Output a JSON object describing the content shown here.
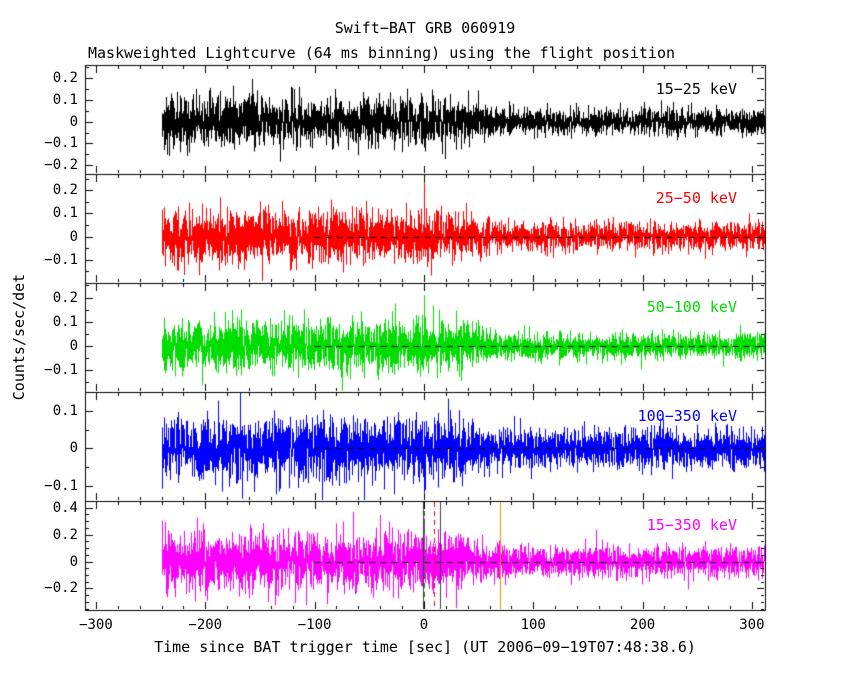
{
  "chart_data": {
    "type": "line",
    "title": "Swift−BAT GRB 060919",
    "subtitle": "Maskweighted Lightcurve (64 ms binning) using the flight position",
    "xlabel": "Time since BAT trigger time [sec] (UT 2006−09−19T07:48:38.6)",
    "ylabel": "Counts/sec/det",
    "xlim": [
      -310,
      312
    ],
    "x_tick_values": [
      -300,
      -200,
      -100,
      0,
      100,
      200,
      300
    ],
    "x_tick_labels": [
      "−300",
      "−200",
      "−100",
      "0",
      "100",
      "200",
      "300"
    ],
    "x_minor_step": 20,
    "data_t_range": [
      -240,
      312
    ],
    "noise_transition_t": [
      30,
      65
    ],
    "grid": false,
    "legend_position": "in-panel-right",
    "zero_line": {
      "t_start": -100,
      "t_end": 312,
      "color": "#000000",
      "style": "dashed",
      "panels": [
        1,
        2,
        3,
        4
      ]
    },
    "event_markers": [
      {
        "t": -1,
        "color": "#404040",
        "style": "solid"
      },
      {
        "t": 0,
        "color": "#009900",
        "style": "dashed"
      },
      {
        "t": 9,
        "color": "#ff0000",
        "style": "dashed"
      },
      {
        "t": 15,
        "color": "#404040",
        "style": "solid"
      },
      {
        "t": 70,
        "color": "#ff8c00",
        "style": "solid"
      }
    ],
    "panels": [
      {
        "label": "15−25 keV",
        "color": "#000000",
        "ylim": [
          -0.24,
          0.26
        ],
        "ytick_values": [
          0.2,
          0.1,
          0,
          -0.1,
          -0.2
        ],
        "ytick_labels": [
          "0.2",
          "0.1",
          "0",
          "−0.1",
          "−0.2"
        ],
        "y_minor_step": 0.05,
        "noise_sigma_before": 0.055,
        "noise_sigma_after": 0.03,
        "spike_t": null,
        "spike_peak": null
      },
      {
        "label": "25−50 keV",
        "color": "#ff0000",
        "ylim": [
          -0.2,
          0.27
        ],
        "ytick_values": [
          0.2,
          0.1,
          0,
          -0.1
        ],
        "ytick_labels": [
          "0.2",
          "0.1",
          "0",
          "−0.1"
        ],
        "y_minor_step": 0.05,
        "noise_sigma_before": 0.055,
        "noise_sigma_after": 0.03,
        "spike_t": 0,
        "spike_peak": 0.235
      },
      {
        "label": "50−100 keV",
        "color": "#00dd00",
        "ylim": [
          -0.19,
          0.26
        ],
        "ytick_values": [
          0.2,
          0.1,
          0,
          -0.1
        ],
        "ytick_labels": [
          "0.2",
          "0.1",
          "0",
          "−0.1"
        ],
        "y_minor_step": 0.05,
        "noise_sigma_before": 0.05,
        "noise_sigma_after": 0.026,
        "spike_t": 0,
        "spike_peak": 0.21
      },
      {
        "label": "100−350 keV",
        "color": "#0000ff",
        "ylim": [
          -0.14,
          0.15
        ],
        "ytick_values": [
          0.1,
          0,
          -0.1
        ],
        "ytick_labels": [
          "0.1",
          "0",
          "−0.1"
        ],
        "y_minor_step": 0.05,
        "noise_sigma_before": 0.042,
        "noise_sigma_after": 0.026,
        "spike_t": null,
        "spike_peak": null
      },
      {
        "label": "15−350 keV",
        "color": "#ff00ff",
        "ylim": [
          -0.36,
          0.45
        ],
        "ytick_values": [
          0.4,
          0.2,
          0,
          -0.2
        ],
        "ytick_labels": [
          "0.4",
          "0.2",
          "0",
          "−0.2"
        ],
        "y_minor_step": 0.05,
        "noise_sigma_before": 0.105,
        "noise_sigma_after": 0.058,
        "spike_t": 0,
        "spike_peak": 0.32
      }
    ]
  }
}
